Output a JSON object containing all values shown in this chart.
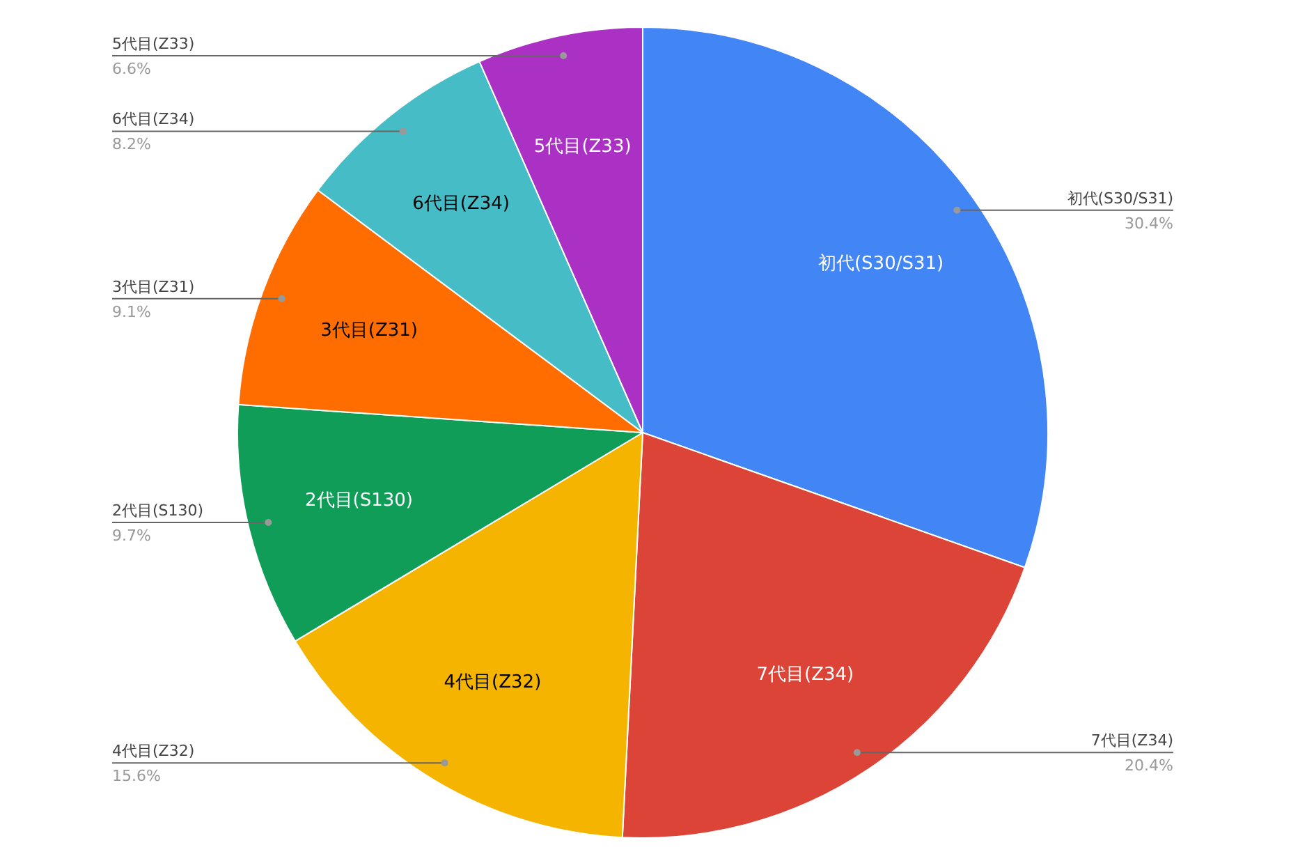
{
  "chart_data": {
    "type": "pie",
    "categories": [
      "初代(S30/S31)",
      "7代目(Z34)",
      "4代目(Z32)",
      "2代目(S130)",
      "3代目(Z31)",
      "6代目(Z34)",
      "5代目(Z33)"
    ],
    "values": [
      30.4,
      20.4,
      15.6,
      9.7,
      9.1,
      8.2,
      6.6
    ],
    "value_labels": [
      "30.4%",
      "20.4%",
      "15.6%",
      "9.7%",
      "9.1%",
      "8.2%",
      "6.6%"
    ],
    "colors": [
      "#4285f4",
      "#db4437",
      "#f4b400",
      "#0f9d58",
      "#ff6d01",
      "#46bdc6",
      "#ab30c4"
    ]
  }
}
